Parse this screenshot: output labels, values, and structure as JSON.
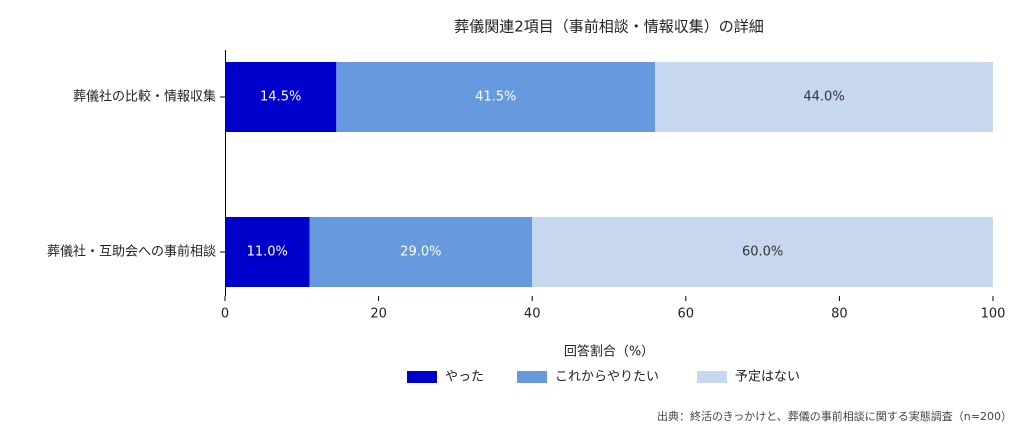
{
  "chart_data": {
    "type": "stacked_barh",
    "title": "葬儀関連2項目（事前相談・情報収集）の詳細",
    "xlabel": "回答割合（%）",
    "source": "出典：終活のきっかけと、葬儀の事前相談に関する実態調査（n=200）",
    "categories": [
      "葬儀社の比較・情報収集",
      "葬儀社・互助会への事前相談"
    ],
    "series": [
      {
        "name": "やった",
        "color": "#0000cd",
        "values": [
          14.5,
          11.0
        ],
        "value_labels": [
          "14.5%",
          "11.0%"
        ]
      },
      {
        "name": "これからやりたい",
        "color": "#6699dd",
        "values": [
          41.5,
          29.0
        ],
        "value_labels": [
          "41.5%",
          "29.0%"
        ]
      },
      {
        "name": "予定はない",
        "color": "#c6d7ef",
        "values": [
          44.0,
          60.0
        ],
        "value_labels": [
          "44.0%",
          "60.0%"
        ]
      }
    ],
    "xlim": [
      0,
      100
    ],
    "xticks": [
      0,
      20,
      40,
      60,
      80,
      100
    ],
    "legend": "bottom"
  }
}
